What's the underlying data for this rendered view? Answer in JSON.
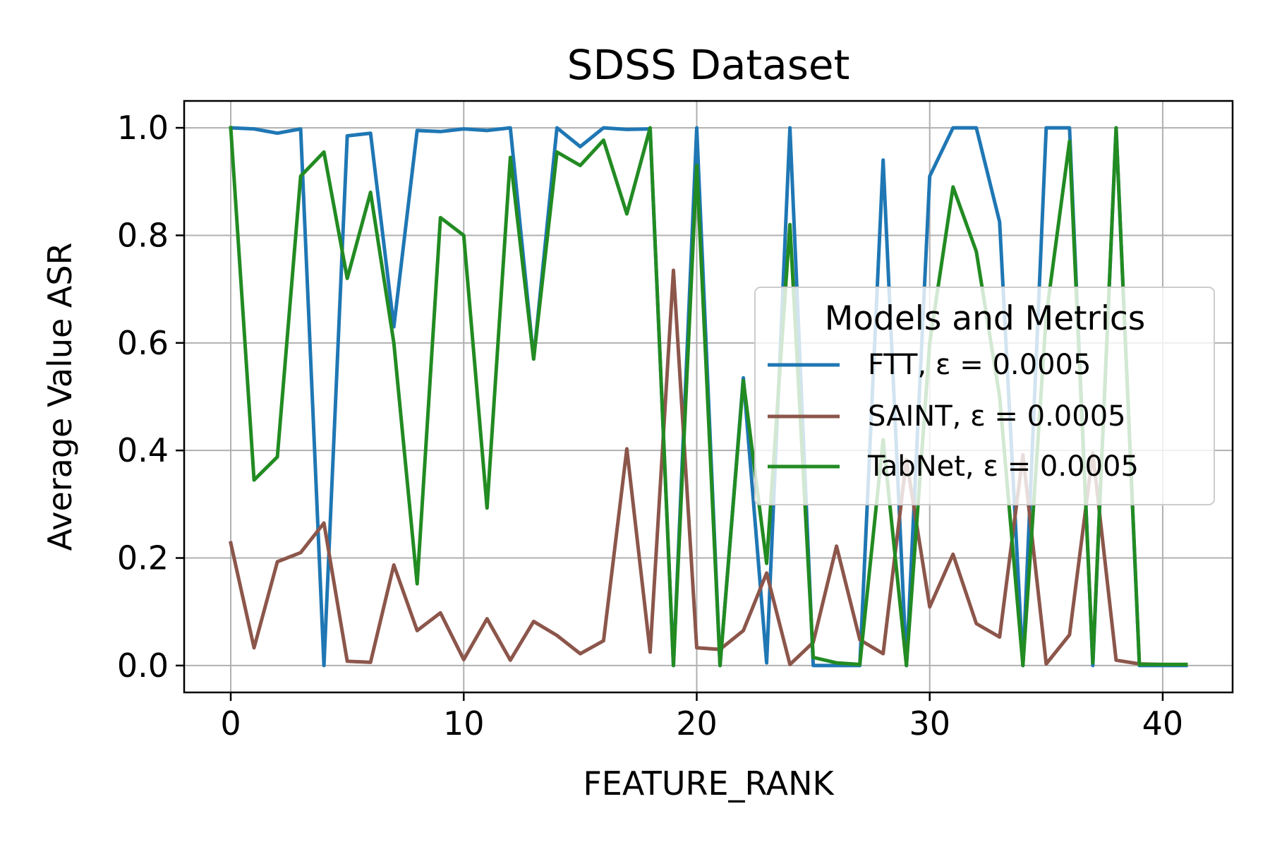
{
  "chart_data": {
    "type": "line",
    "title": "SDSS Dataset",
    "xlabel": "FEATURE_RANK",
    "ylabel": "Average Value ASR",
    "xlim": [
      -2,
      43
    ],
    "ylim": [
      -0.05,
      1.05
    ],
    "xticks": [
      0,
      10,
      20,
      30,
      40
    ],
    "xtick_labels": [
      "0",
      "10",
      "20",
      "30",
      "40"
    ],
    "yticks": [
      0.0,
      0.2,
      0.4,
      0.6,
      0.8,
      1.0
    ],
    "ytick_labels": [
      "0.0",
      "0.2",
      "0.4",
      "0.6",
      "0.8",
      "1.0"
    ],
    "grid": true,
    "legend": {
      "title": "Models and Metrics",
      "placement": "center-right"
    },
    "x": [
      0,
      1,
      2,
      3,
      4,
      5,
      6,
      7,
      8,
      9,
      10,
      11,
      12,
      13,
      14,
      15,
      16,
      17,
      18,
      19,
      20,
      21,
      22,
      23,
      24,
      25,
      26,
      27,
      28,
      29,
      30,
      31,
      32,
      33,
      34,
      35,
      36,
      37,
      38,
      39,
      40,
      41
    ],
    "series": [
      {
        "name": "FTT, ε = 0.0005",
        "color": "#1f77b4",
        "values": [
          1.0,
          0.998,
          0.99,
          0.998,
          0.0,
          0.985,
          0.99,
          0.63,
          0.995,
          0.993,
          0.998,
          0.995,
          1.0,
          0.57,
          1.0,
          0.965,
          1.0,
          0.997,
          0.998,
          0.0,
          1.0,
          0.0,
          0.535,
          0.005,
          1.0,
          0.0,
          0.0,
          0.0,
          0.94,
          0.0,
          0.91,
          1.0,
          1.0,
          0.825,
          0.0,
          1.0,
          1.0,
          0.0,
          1.0,
          0.0,
          0.0,
          0.0
        ]
      },
      {
        "name": "SAINT, ε = 0.0005",
        "color": "#8c564b",
        "values": [
          0.228,
          0.033,
          0.193,
          0.21,
          0.265,
          0.008,
          0.006,
          0.187,
          0.065,
          0.098,
          0.011,
          0.087,
          0.01,
          0.082,
          0.056,
          0.022,
          0.046,
          0.403,
          0.025,
          0.735,
          0.033,
          0.03,
          0.065,
          0.172,
          0.002,
          0.043,
          0.222,
          0.048,
          0.022,
          0.383,
          0.109,
          0.207,
          0.078,
          0.053,
          0.392,
          0.003,
          0.057,
          0.395,
          0.01,
          0.003,
          0.002,
          0.002
        ]
      },
      {
        "name": "TabNet, ε = 0.0005",
        "color": "#228b22",
        "values": [
          1.0,
          0.345,
          0.388,
          0.91,
          0.955,
          0.72,
          0.88,
          0.6,
          0.152,
          0.833,
          0.8,
          0.293,
          0.945,
          0.57,
          0.955,
          0.93,
          0.977,
          0.84,
          1.0,
          0.0,
          0.93,
          0.0,
          0.53,
          0.19,
          0.82,
          0.015,
          0.005,
          0.002,
          0.42,
          0.0,
          0.6,
          0.89,
          0.77,
          0.5,
          0.0,
          0.65,
          0.975,
          0.005,
          1.0,
          0.002,
          0.002,
          0.002
        ]
      }
    ]
  }
}
